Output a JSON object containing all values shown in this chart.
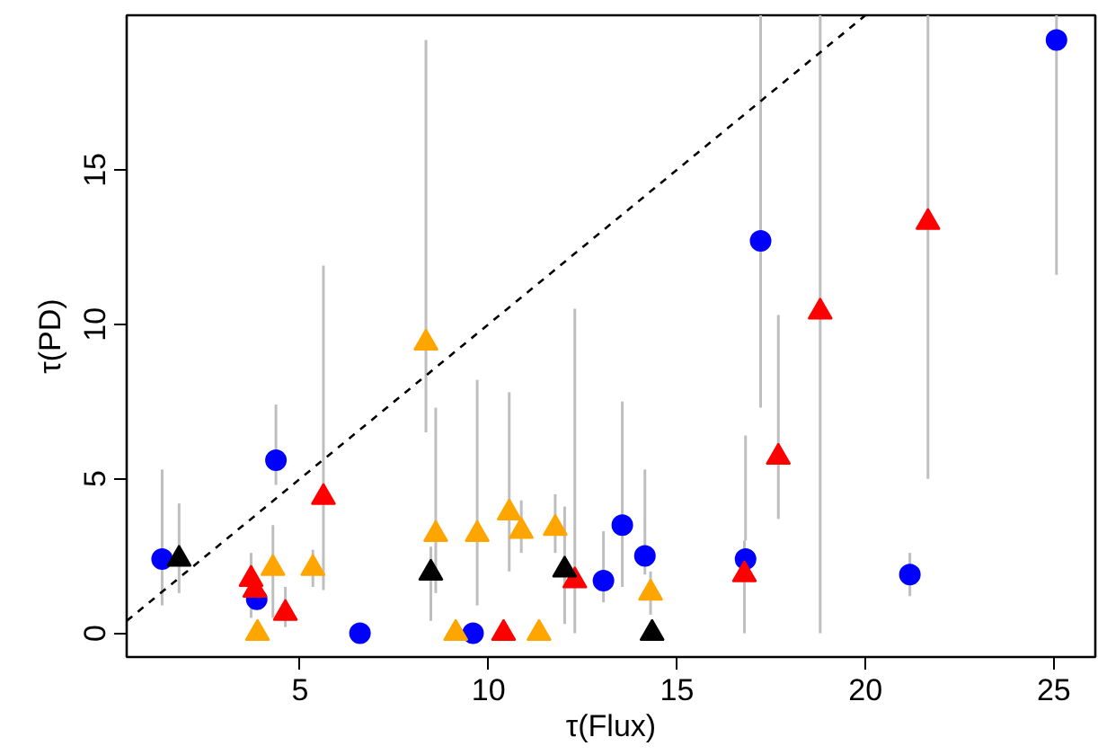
{
  "chart_data": {
    "type": "scatter",
    "xlabel": "τ(Flux)",
    "ylabel": "τ(PD)",
    "xlim": [
      0.4,
      26.1
    ],
    "ylim": [
      -0.77,
      20
    ],
    "xticks": [
      5,
      10,
      15,
      20,
      25
    ],
    "yticks": [
      0,
      5,
      10,
      15
    ],
    "grid": false,
    "series": [
      {
        "type": "line",
        "color": "#000000",
        "line_style": "dashed",
        "x": [
          0.4,
          20
        ],
        "values": [
          0.4,
          20
        ]
      },
      {
        "color": "#0000ff",
        "marker": "circle",
        "x": [
          1.34,
          3.85,
          4.36,
          6.59,
          9.59,
          13.05,
          13.55,
          14.15,
          16.82,
          17.22,
          21.18,
          25.07
        ],
        "values": [
          2.4,
          1.1,
          5.6,
          0,
          0,
          1.7,
          3.5,
          2.5,
          2.4,
          12.7,
          1.9,
          19.2
        ],
        "errors": [
          [
            0.9,
            5.3
          ],
          null,
          [
            4.8,
            7.4
          ],
          null,
          null,
          [
            1.0,
            3.3
          ],
          [
            1.5,
            7.5
          ],
          [
            1.9,
            5.3
          ],
          [
            3.0,
            6.4
          ],
          [
            7.3,
            20
          ],
          [
            1.2,
            2.6
          ],
          [
            11.6,
            20
          ]
        ]
      },
      {
        "color": "#ff0000",
        "marker": "triangle",
        "x": [
          3.7,
          3.8,
          4.61,
          5.62,
          10.4,
          12.29,
          16.79,
          17.69,
          18.8,
          21.66
        ],
        "values": [
          1.75,
          1.4,
          0.65,
          4.4,
          0,
          1.7,
          1.9,
          5.7,
          10.4,
          13.3
        ],
        "errors": [
          [
            0.5,
            2.6
          ],
          null,
          [
            0.2,
            1.5
          ],
          [
            1.4,
            11.9
          ],
          null,
          [
            0,
            10.5
          ],
          [
            0,
            3.0
          ],
          [
            3.7,
            10.3
          ],
          [
            0,
            20
          ],
          [
            5.0,
            20
          ]
        ]
      },
      {
        "color": "#ffa500",
        "marker": "triangle",
        "x": [
          3.87,
          4.28,
          5.34,
          8.34,
          8.6,
          9.13,
          9.7,
          10.55,
          10.87,
          11.34,
          11.77,
          14.3
        ],
        "values": [
          0,
          2.1,
          2.1,
          9.4,
          3.2,
          0,
          3.2,
          3.9,
          3.3,
          0,
          3.4,
          1.3
        ],
        "errors": [
          null,
          [
            0.5,
            3.5
          ],
          [
            1.5,
            2.7
          ],
          [
            6.5,
            19.2
          ],
          [
            1.3,
            7.3
          ],
          null,
          [
            0.9,
            8.2
          ],
          [
            2.0,
            7.8
          ],
          [
            2.6,
            4.3
          ],
          null,
          [
            2.6,
            4.5
          ],
          [
            0.6,
            2.0
          ]
        ]
      },
      {
        "color": "#000000",
        "marker": "triangle",
        "x": [
          1.79,
          8.47,
          12.02,
          14.34
        ],
        "values": [
          2.4,
          1.95,
          2.05,
          0
        ],
        "errors": [
          [
            1.3,
            4.2
          ],
          [
            0.4,
            2.8
          ],
          [
            0.3,
            4.1
          ],
          null
        ]
      }
    ]
  }
}
